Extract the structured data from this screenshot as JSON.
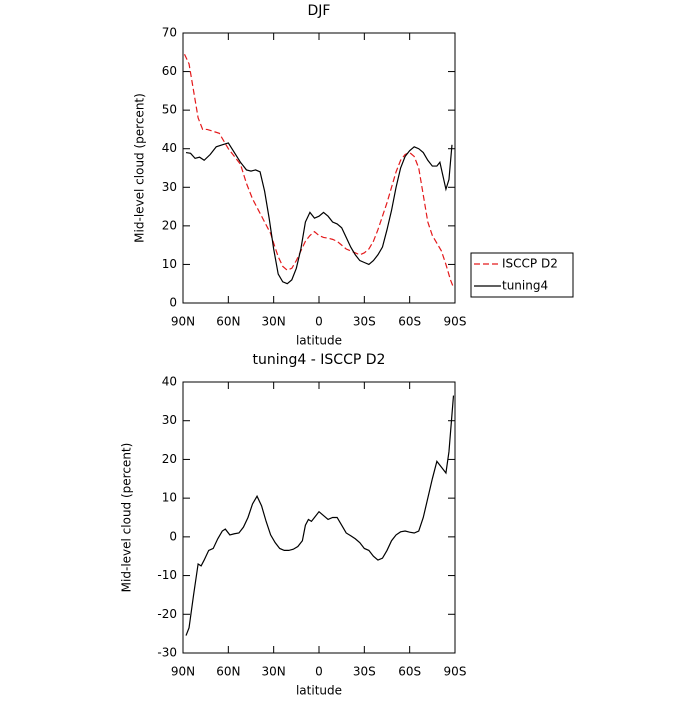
{
  "chart_data": [
    {
      "type": "line",
      "title": "DJF",
      "xlabel": "latitude",
      "ylabel": "Mid-level cloud (percent)",
      "xlim": [
        90,
        -90
      ],
      "xticks": [
        {
          "value": 90,
          "label": "90N"
        },
        {
          "value": 60,
          "label": "60N"
        },
        {
          "value": 30,
          "label": "30N"
        },
        0,
        {
          "value": -30,
          "label": "30S"
        },
        {
          "value": -60,
          "label": "60S"
        },
        {
          "value": -90,
          "label": "90S"
        }
      ],
      "ylim": [
        0,
        70
      ],
      "yticks": [
        0,
        10,
        20,
        30,
        40,
        50,
        60,
        70
      ],
      "legend": "right",
      "series": [
        {
          "name": "ISCCP D2",
          "color": "#e41a1c",
          "dash": true,
          "x": [
            89,
            86,
            83,
            80,
            77,
            74,
            70,
            66,
            63,
            60,
            56,
            52,
            48,
            44,
            40,
            36,
            32,
            30,
            27,
            24,
            21,
            18,
            15,
            12,
            9,
            6,
            3,
            0,
            -3,
            -6,
            -9,
            -12,
            -15,
            -18,
            -21,
            -24,
            -27,
            -30,
            -33,
            -36,
            -39,
            -42,
            -45,
            -48,
            -51,
            -54,
            -57,
            -60,
            -63,
            -66,
            -69,
            -72,
            -75,
            -78,
            -81,
            -84,
            -87,
            -89
          ],
          "values": [
            64.5,
            62,
            55,
            48,
            45,
            45,
            44.5,
            44,
            42,
            40,
            38,
            36,
            31,
            27,
            24,
            21,
            18,
            15.5,
            12,
            9.5,
            8.5,
            9,
            11,
            13.5,
            16,
            17.5,
            18.5,
            17.5,
            17,
            16.8,
            16.5,
            16,
            15,
            14,
            13.5,
            13,
            12.5,
            13,
            14,
            16,
            19,
            22.5,
            26,
            30,
            34,
            37,
            38.5,
            39,
            38,
            35,
            28,
            21,
            17.5,
            15.5,
            13.5,
            10,
            6,
            4
          ]
        },
        {
          "name": "tuning4",
          "color": "#000000",
          "dash": false,
          "x": [
            88,
            85,
            82,
            79,
            76,
            72,
            68,
            64,
            60,
            56,
            52,
            48,
            45,
            42,
            39,
            36,
            33,
            30,
            27,
            24,
            21,
            18,
            15,
            12,
            9,
            6,
            3,
            0,
            -3,
            -6,
            -9,
            -12,
            -15,
            -18,
            -21,
            -24,
            -27,
            -30,
            -33,
            -36,
            -39,
            -42,
            -45,
            -48,
            -51,
            -54,
            -57,
            -60,
            -63,
            -66,
            -69,
            -72,
            -75,
            -78,
            -80,
            -82,
            -84,
            -86,
            -88
          ],
          "values": [
            39,
            38.8,
            37.5,
            37.8,
            37,
            38.5,
            40.5,
            41,
            41.5,
            39,
            36.5,
            34.5,
            34.2,
            34.5,
            34,
            29,
            22,
            14,
            7.5,
            5.5,
            5,
            6,
            9,
            14,
            21,
            23.5,
            22,
            22.5,
            23.5,
            22.5,
            21,
            20.5,
            19.5,
            17,
            14.5,
            12.5,
            11,
            10.5,
            10,
            11,
            12.5,
            14.5,
            19,
            24,
            30,
            35,
            38,
            39.5,
            40.5,
            40,
            39,
            37,
            35.5,
            35.5,
            36.5,
            33,
            29.5,
            32,
            41
          ]
        }
      ]
    },
    {
      "type": "line",
      "title": "tuning4 - ISCCP D2",
      "xlabel": "latitude",
      "ylabel": "Mid-level cloud (percent)",
      "xlim": [
        90,
        -90
      ],
      "xticks": [
        {
          "value": 90,
          "label": "90N"
        },
        {
          "value": 60,
          "label": "60N"
        },
        {
          "value": 30,
          "label": "30N"
        },
        0,
        {
          "value": -30,
          "label": "30S"
        },
        {
          "value": -60,
          "label": "60S"
        },
        {
          "value": -90,
          "label": "90S"
        }
      ],
      "ylim": [
        -30,
        40
      ],
      "yticks": [
        -30,
        -20,
        -10,
        0,
        10,
        20,
        30,
        40
      ],
      "color": "#000000",
      "x": [
        88,
        86,
        83,
        80,
        78,
        76,
        73,
        70,
        67,
        64,
        62,
        59,
        56,
        53,
        50,
        47,
        44,
        41,
        38,
        35,
        32,
        29,
        26,
        23,
        20,
        17,
        14,
        11,
        9,
        7,
        5,
        3,
        0,
        -3,
        -6,
        -9,
        -12,
        -15,
        -18,
        -21,
        -24,
        -27,
        -30,
        -33,
        -36,
        -39,
        -42,
        -45,
        -48,
        -51,
        -54,
        -57,
        -60,
        -63,
        -66,
        -69,
        -72,
        -75,
        -78,
        -81,
        -84,
        -86,
        -89
      ],
      "values": [
        -25.5,
        -23.5,
        -15,
        -7,
        -7.5,
        -6,
        -3.5,
        -3,
        -0.5,
        1.5,
        2,
        0.5,
        0.8,
        1,
        2.5,
        5,
        8.5,
        10.5,
        8,
        4,
        0.5,
        -1.5,
        -3,
        -3.5,
        -3.5,
        -3.2,
        -2.5,
        -1,
        3,
        4.5,
        4,
        5,
        6.5,
        5.5,
        4.5,
        5,
        5,
        3,
        1,
        0.3,
        -0.5,
        -1.5,
        -3,
        -3.5,
        -5,
        -6,
        -5.5,
        -3.5,
        -1,
        0.5,
        1.3,
        1.5,
        1.2,
        1,
        1.5,
        5,
        10,
        15,
        19.5,
        18,
        16.5,
        22,
        36.5
      ]
    }
  ]
}
